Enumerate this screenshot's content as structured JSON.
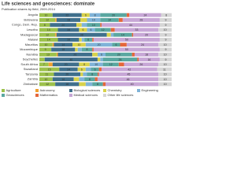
{
  "chart_data": {
    "type": "stacked-bar-horizontal",
    "title": "Life sciences and geosciences: dominate",
    "subtitle": "Publication shares by field, 2009-2014",
    "categories": [
      "Angola",
      "Botswana",
      "Congo, Dem. Rep.",
      "Lesotho",
      "Madagascar",
      "Malawi",
      "Mauritius",
      "Mozambique",
      "Namibia",
      "Seychelles",
      "South Africa",
      "Swaziland",
      "Tanzania",
      "Zambia",
      "Zimbabwe"
    ],
    "xlim": [
      0,
      100
    ],
    "series": [
      {
        "name": "Agriculture",
        "color": "#9cc14b",
        "values": [
          10,
          12,
          8,
          14,
          12,
          14,
          10,
          9,
          13,
          4,
          7,
          15,
          11,
          10,
          12
        ]
      },
      {
        "name": "Astronomy",
        "color": "#f0a030",
        "values": [
          0,
          1,
          0,
          0,
          1,
          0,
          1,
          0,
          1,
          0,
          3,
          0,
          0,
          0,
          0
        ]
      },
      {
        "name": "Biological sciences",
        "color": "#3f6f8c",
        "values": [
          22,
          18,
          20,
          16,
          38,
          16,
          14,
          18,
          26,
          40,
          20,
          14,
          20,
          16,
          18
        ]
      },
      {
        "name": "Chemistry",
        "color": "#d8d24a",
        "values": [
          6,
          5,
          4,
          6,
          3,
          2,
          10,
          2,
          4,
          2,
          8,
          6,
          2,
          4,
          5
        ]
      },
      {
        "name": "Engineering",
        "color": "#7fb3d8",
        "values": [
          8,
          10,
          4,
          6,
          2,
          2,
          20,
          3,
          6,
          2,
          10,
          4,
          3,
          4,
          5
        ]
      },
      {
        "name": "Geosciences",
        "color": "#5aa7a0",
        "values": [
          20,
          14,
          10,
          12,
          14,
          6,
          6,
          8,
          20,
          26,
          12,
          6,
          8,
          8,
          8
        ]
      },
      {
        "name": "Mathematics",
        "color": "#e4663a",
        "values": [
          2,
          3,
          1,
          3,
          1,
          1,
          5,
          1,
          2,
          1,
          4,
          2,
          1,
          2,
          2
        ]
      },
      {
        "name": "Medical sciences",
        "color": "#c7a7d6",
        "values": [
          24,
          28,
          44,
          33,
          20,
          50,
          24,
          50,
          18,
          16,
          26,
          42,
          45,
          46,
          40
        ]
      },
      {
        "name": "Other life sciences",
        "color": "#d6d6d6",
        "values": [
          8,
          9,
          9,
          10,
          9,
          9,
          10,
          9,
          10,
          9,
          10,
          11,
          10,
          10,
          10
        ]
      }
    ]
  }
}
